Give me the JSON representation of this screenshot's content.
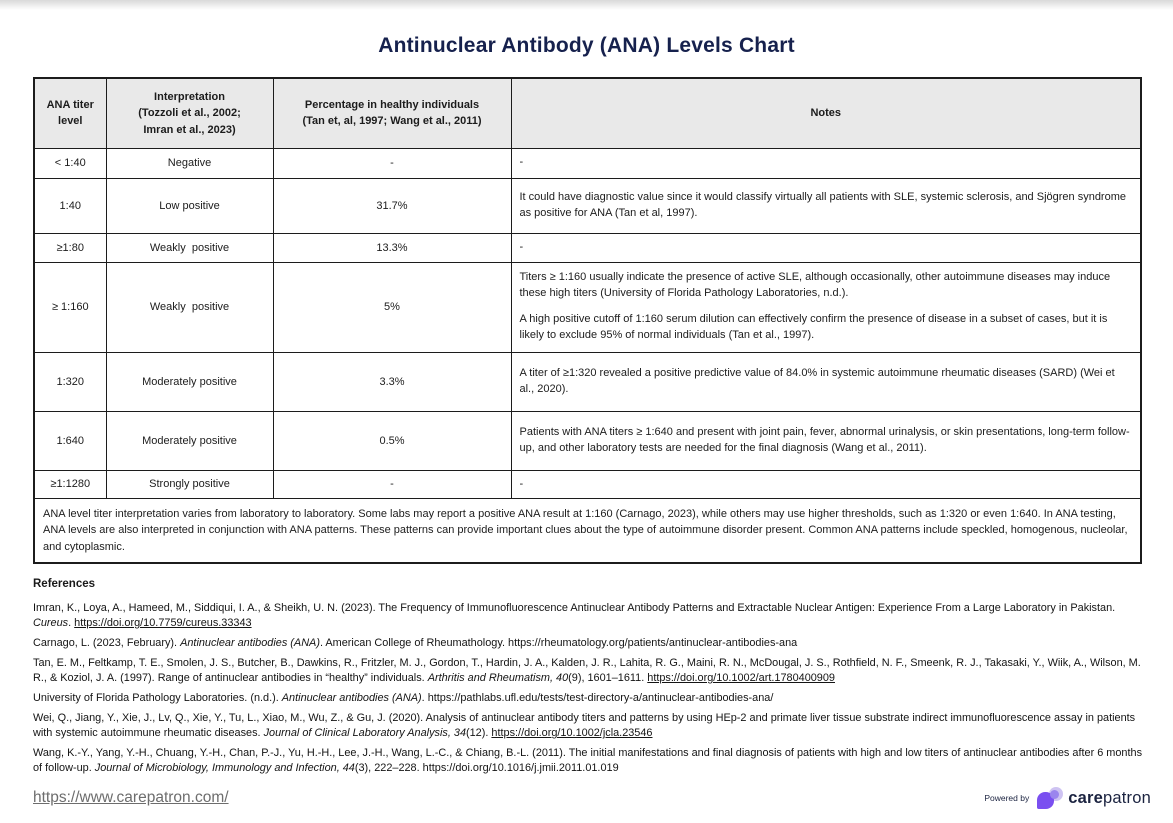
{
  "title": "Antinuclear Antibody (ANA) Levels Chart",
  "colors": {
    "title_navy": "#16214d",
    "header_bg": "#e9e9e9",
    "border": "#1c1c1c",
    "footer_link_gray": "#6d6d6d",
    "brand_navy": "#1b2340",
    "brand_purple": "#7a4ff0",
    "brand_lavender": "#c6b9f0"
  },
  "table": {
    "headers": [
      {
        "lines": [
          "ANA titer",
          "level"
        ]
      },
      {
        "lines": [
          "Interpretation",
          "(Tozzoli et al., 2002;",
          "Imran et al., 2023)"
        ]
      },
      {
        "lines": [
          "Percentage in healthy individuals",
          "(Tan et, al, 1997; Wang et al., 2011)"
        ]
      },
      {
        "lines": [
          "Notes"
        ]
      }
    ],
    "rows": [
      {
        "titer": "< 1:40",
        "interpretation": "Negative",
        "percentage": "-",
        "notes": [
          "-"
        ]
      },
      {
        "titer": "1:40",
        "interpretation": "Low positive",
        "percentage": "31.7%",
        "notes": [
          "It could have diagnostic value since it would classify virtually all patients with SLE, systemic sclerosis, and Sjögren syndrome as positive for ANA (Tan et al, 1997)."
        ]
      },
      {
        "titer": "≥1:80",
        "interpretation": "Weakly  positive",
        "percentage": "13.3%",
        "notes": [
          "-"
        ]
      },
      {
        "titer": "≥ 1:160",
        "interpretation": "Weakly  positive",
        "percentage": "5%",
        "notes": [
          "Titers ≥ 1:160 usually indicate the presence of active SLE, although occasionally, other autoimmune diseases may induce these high titers (University of Florida Pathology Laboratories, n.d.).",
          "A high positive cutoff of 1:160 serum dilution can effectively confirm the presence of disease in a subset of cases, but it is likely to exclude 95% of normal individuals (Tan et al., 1997)."
        ]
      },
      {
        "titer": "1:320",
        "interpretation": "Moderately positive",
        "percentage": "3.3%",
        "notes": [
          "A titer of ≥1:320 revealed a positive predictive value of 84.0% in systemic autoimmune rheumatic diseases (SARD) (Wei et al., 2020)."
        ]
      },
      {
        "titer": "1:640",
        "interpretation": "Moderately positive",
        "percentage": "0.5%",
        "notes": [
          "Patients with ANA titers ≥ 1:640 and present with joint pain, fever, abnormal urinalysis, or skin presentations, long-term follow-up, and other laboratory tests are needed for the final diagnosis (Wang et al., 2011)."
        ]
      },
      {
        "titer": "≥1:1280",
        "interpretation": "Strongly positive",
        "percentage": "-",
        "notes": [
          "-"
        ]
      }
    ],
    "footnote": "ANA level titer interpretation varies from laboratory to laboratory. Some labs may report a positive ANA result at 1:160 (Carnago, 2023), while others may use higher thresholds, such as 1:320 or even 1:640. In ANA testing, ANA levels are also interpreted in conjunction with ANA patterns. These patterns can provide important clues about the type of autoimmune disorder present. Common ANA patterns include speckled, homogenous, nucleolar, and cytoplasmic."
  },
  "references": {
    "heading": "References",
    "items": [
      [
        {
          "t": "Imran, K., Loya, A., Hameed, M., Siddiqui, I. A., & Sheikh, U. N. (2023). The Frequency of Immunofluorescence Antinuclear Antibody Patterns and Extractable Nuclear Antigen: Experience From a Large Laboratory in Pakistan. ",
          "s": "plain"
        },
        {
          "t": "Cureus",
          "s": "italic"
        },
        {
          "t": ". ",
          "s": "plain"
        },
        {
          "t": "https://doi.org/10.7759/cureus.33343",
          "s": "link"
        }
      ],
      [
        {
          "t": "Carnago, L. (2023, February). ",
          "s": "plain"
        },
        {
          "t": "Antinuclear antibodies (ANA)",
          "s": "italic"
        },
        {
          "t": ". American College of Rheumathology. https://rheumatology.org/patients/antinuclear-antibodies-ana",
          "s": "plain"
        }
      ],
      [
        {
          "t": "Tan, E. M., Feltkamp, T. E., Smolen, J. S., Butcher, B., Dawkins, R., Fritzler, M. J., Gordon, T., Hardin, J. A., Kalden, J. R., Lahita, R. G., Maini, R. N., McDougal, J. S., Rothfield, N. F., Smeenk, R. J., Takasaki, Y., Wiik, A., Wilson, M. R., & Koziol, J. A. (1997). Range of antinuclear antibodies in “healthy” individuals. ",
          "s": "plain"
        },
        {
          "t": "Arthritis and Rheumatism, 40",
          "s": "italic"
        },
        {
          "t": "(9), 1601–1611. ",
          "s": "plain"
        },
        {
          "t": "https://doi.org/10.1002/art.1780400909",
          "s": "link"
        }
      ],
      [
        {
          "t": "University of Florida Pathology Laboratories. (n.d.). ",
          "s": "plain"
        },
        {
          "t": "Antinuclear antibodies (ANA)",
          "s": "italic"
        },
        {
          "t": ". https://pathlabs.ufl.edu/tests/test-directory-a/antinuclear-antibodies-ana/",
          "s": "plain"
        }
      ],
      [
        {
          "t": "Wei, Q., Jiang, Y., Xie, J., Lv, Q., Xie, Y., Tu, L., Xiao, M., Wu, Z., & Gu, J. (2020). Analysis of antinuclear antibody titers and patterns by using HEp-2 and primate liver tissue substrate indirect immunofluorescence assay in patients with systemic autoimmune rheumatic diseases. ",
          "s": "plain"
        },
        {
          "t": "Journal of Clinical Laboratory Analysis, 34",
          "s": "italic"
        },
        {
          "t": "(12). ",
          "s": "plain"
        },
        {
          "t": "https://doi.org/10.1002/jcla.23546",
          "s": "link"
        }
      ],
      [
        {
          "t": "Wang, K.-Y., Yang, Y.-H., Chuang, Y.-H., Chan, P.-J., Yu, H.-H., Lee, J.-H., Wang, L.-C., & Chiang, B.-L. (2011). The initial manifestations and final diagnosis of patients with high and low titers of antinuclear antibodies after 6 months of follow-up. ",
          "s": "plain"
        },
        {
          "t": "Journal of Microbiology, Immunology and Infection, 44",
          "s": "italic"
        },
        {
          "t": "(3), 222–228. https://doi.org/10.1016/j.jmii.2011.01.019",
          "s": "plain"
        }
      ]
    ]
  },
  "footer": {
    "url": "https://www.carepatron.com/",
    "powered_by": "Powered by",
    "brand_bold": "care",
    "brand_rest": "patron"
  }
}
